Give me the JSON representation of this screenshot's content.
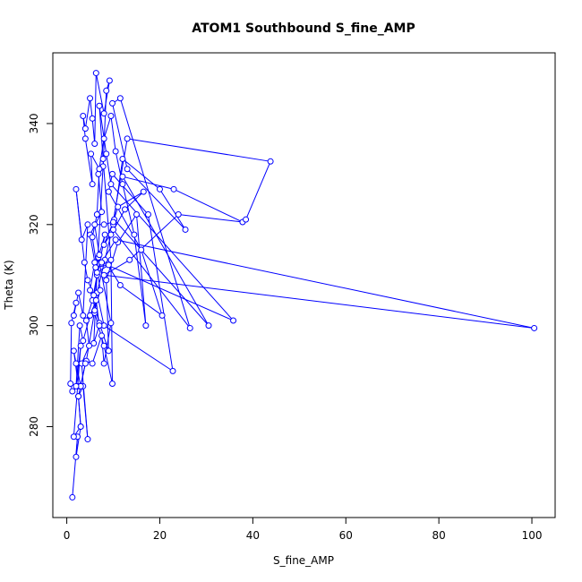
{
  "chart_data": {
    "type": "line",
    "title": "ATOM1 Southbound S_fine_AMP",
    "xlabel": "S_fine_AMP",
    "ylabel": "Theta (K)",
    "xlim": [
      -3,
      105
    ],
    "ylim": [
      262,
      354
    ],
    "xticks": [
      0,
      20,
      40,
      60,
      80,
      100
    ],
    "yticks": [
      280,
      300,
      320,
      340
    ],
    "grid": false,
    "legend": "none",
    "series_color": "#0000ff",
    "series": [
      {
        "values": [
          [
            1.2,
            266.0
          ],
          [
            2.3,
            278.0
          ],
          [
            2.0,
            274.0
          ],
          [
            3.0,
            280.0
          ],
          [
            2.5,
            286.0
          ],
          [
            3.5,
            288.0
          ],
          [
            4.5,
            277.5
          ],
          [
            3.2,
            292.5
          ],
          [
            4.8,
            296.0
          ],
          [
            4.2,
            301.0
          ],
          [
            5.5,
            305.0
          ],
          [
            6.5,
            310.0
          ],
          [
            5.0,
            318.0
          ],
          [
            7.5,
            322.5
          ],
          [
            6.8,
            330.0
          ],
          [
            8.0,
            337.0
          ],
          [
            9.5,
            341.5
          ],
          [
            10.5,
            334.5
          ],
          [
            12.0,
            328.0
          ],
          [
            14.5,
            318.0
          ],
          [
            17.0,
            300.0
          ],
          [
            15.0,
            322.0
          ],
          [
            11.0,
            316.5
          ],
          [
            8.5,
            309.0
          ],
          [
            9.0,
            295.0
          ],
          [
            7.0,
            300.5
          ],
          [
            5.0,
            307.0
          ],
          [
            6.0,
            312.5
          ],
          [
            8.2,
            313.0
          ],
          [
            11.5,
            308.0
          ],
          [
            20.5,
            302.0
          ],
          [
            16.0,
            315.0
          ],
          [
            9.0,
            326.5
          ],
          [
            9.8,
            330.0
          ],
          [
            17.5,
            322.0
          ],
          [
            22.8,
            291.0
          ],
          [
            8.0,
            300.0
          ],
          [
            6.5,
            306.5
          ],
          [
            10.0,
            320.0
          ],
          [
            12.0,
            333.0
          ],
          [
            20.0,
            327.0
          ],
          [
            25.5,
            319.0
          ],
          [
            13.0,
            331.0
          ],
          [
            9.8,
            344.0
          ],
          [
            11.5,
            345.0
          ],
          [
            26.5,
            299.5
          ],
          [
            10.0,
            319.0
          ],
          [
            8.0,
            316.0
          ],
          [
            10.2,
            321.0
          ],
          [
            30.5,
            300.0
          ],
          [
            12.0,
            329.5
          ],
          [
            23.0,
            327.0
          ],
          [
            37.8,
            320.5
          ],
          [
            24.0,
            322.0
          ],
          [
            13.5,
            313.0
          ],
          [
            8.0,
            310.0
          ],
          [
            100.5,
            299.5
          ],
          [
            10.5,
            317.0
          ],
          [
            7.5,
            312.5
          ],
          [
            35.8,
            301.0
          ],
          [
            9.5,
            328.0
          ],
          [
            8.5,
            334.0
          ],
          [
            7.0,
            343.5
          ],
          [
            7.8,
            333.0
          ],
          [
            9.5,
            313.0
          ],
          [
            9.8,
            288.5
          ],
          [
            8.0,
            296.0
          ],
          [
            6.0,
            302.5
          ],
          [
            7.8,
            331.5
          ],
          [
            8.5,
            346.5
          ],
          [
            9.2,
            348.5
          ],
          [
            8.0,
            342.0
          ],
          [
            6.3,
            350.0
          ],
          [
            6.0,
            336.0
          ],
          [
            5.5,
            341.0
          ],
          [
            5.0,
            345.0
          ],
          [
            4.0,
            339.0
          ],
          [
            3.5,
            341.5
          ],
          [
            4.0,
            337.0
          ],
          [
            5.5,
            328.0
          ],
          [
            5.2,
            334.0
          ],
          [
            7.0,
            331.0
          ],
          [
            6.5,
            322.0
          ],
          [
            5.5,
            317.5
          ],
          [
            7.2,
            307.0
          ],
          [
            6.0,
            303.0
          ],
          [
            4.2,
            293.0
          ],
          [
            5.5,
            292.5
          ],
          [
            7.5,
            298.0
          ],
          [
            8.0,
            292.5
          ],
          [
            9.5,
            300.5
          ],
          [
            6.8,
            313.5
          ],
          [
            8.2,
            318.0
          ],
          [
            5.8,
            306.0
          ],
          [
            4.5,
            309.0
          ],
          [
            3.8,
            312.5
          ],
          [
            2.0,
            327.0
          ],
          [
            3.2,
            317.0
          ],
          [
            4.5,
            320.0
          ],
          [
            3.5,
            302.0
          ],
          [
            2.5,
            306.5
          ],
          [
            1.5,
            302.0
          ],
          [
            2.0,
            304.5
          ],
          [
            1.0,
            300.5
          ],
          [
            0.8,
            288.5
          ],
          [
            1.2,
            287.0
          ],
          [
            2.5,
            288.0
          ],
          [
            1.5,
            295.0
          ],
          [
            2.0,
            292.5
          ],
          [
            3.0,
            288.0
          ],
          [
            4.0,
            292.5
          ],
          [
            2.5,
            286.0
          ],
          [
            3.0,
            280.0
          ],
          [
            1.5,
            278.0
          ],
          [
            3.0,
            296.0
          ],
          [
            2.0,
            288.0
          ],
          [
            2.8,
            300.0
          ],
          [
            3.5,
            297.0
          ],
          [
            5.0,
            302.0
          ],
          [
            6.3,
            305.0
          ],
          [
            7.0,
            300.0
          ],
          [
            5.8,
            296.5
          ],
          [
            6.5,
            310.5
          ],
          [
            9.0,
            312.0
          ],
          [
            6.2,
            311.5
          ],
          [
            7.0,
            314.0
          ],
          [
            6.0,
            320.0
          ],
          [
            8.0,
            320.0
          ],
          [
            10.0,
            320.5
          ],
          [
            11.0,
            323.5
          ],
          [
            16.5,
            326.5
          ],
          [
            12.5,
            323.0
          ],
          [
            9.5,
            318.0
          ],
          [
            13.0,
            337.0
          ],
          [
            43.8,
            332.5
          ],
          [
            38.5,
            321.0
          ]
        ]
      }
    ]
  }
}
